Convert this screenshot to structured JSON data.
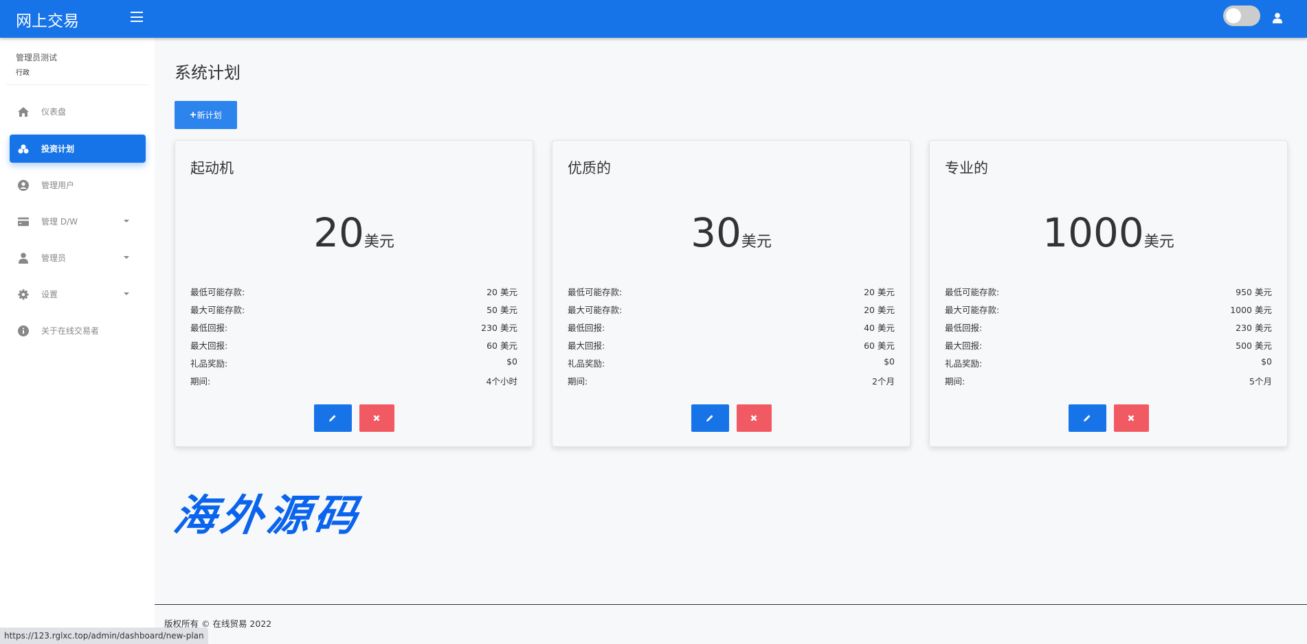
{
  "header": {
    "brand": "网上交易",
    "theme_toggle_on": false
  },
  "sidebar": {
    "user_name": "管理员测试",
    "user_role": "行政",
    "items": [
      {
        "label": "仪表盘",
        "icon": "home-icon"
      },
      {
        "label": "投资计划",
        "icon": "cubes-icon",
        "active": true
      },
      {
        "label": "管理用户",
        "icon": "user-circle-icon"
      },
      {
        "label": "管理 D/W",
        "icon": "credit-card-icon",
        "has_submenu": true
      },
      {
        "label": "管理员",
        "icon": "user-icon",
        "has_submenu": true
      },
      {
        "label": "设置",
        "icon": "gear-icon",
        "has_submenu": true
      },
      {
        "label": "关于在线交易者",
        "icon": "info-icon"
      }
    ]
  },
  "main": {
    "title": "系统计划",
    "new_plan_label": "新计划",
    "plans": [
      {
        "name": "起动机",
        "price": "20",
        "currency": "美元",
        "rows": [
          {
            "label": "最低可能存款:",
            "value": "20 美元"
          },
          {
            "label": "最大可能存款:",
            "value": "50 美元"
          },
          {
            "label": "最低回报:",
            "value": "230 美元"
          },
          {
            "label": "最大回报:",
            "value": "60 美元"
          },
          {
            "label": "礼品奖励:",
            "value": "$0"
          },
          {
            "label": "期间:",
            "value": "4个小时"
          }
        ]
      },
      {
        "name": "优质的",
        "price": "30",
        "currency": "美元",
        "rows": [
          {
            "label": "最低可能存款:",
            "value": "20 美元"
          },
          {
            "label": "最大可能存款:",
            "value": "20 美元"
          },
          {
            "label": "最低回报:",
            "value": "40 美元"
          },
          {
            "label": "最大回报:",
            "value": "60 美元"
          },
          {
            "label": "礼品奖励:",
            "value": "$0"
          },
          {
            "label": "期间:",
            "value": "2个月"
          }
        ]
      },
      {
        "name": "专业的",
        "price": "1000",
        "currency": "美元",
        "rows": [
          {
            "label": "最低可能存款:",
            "value": "950 美元"
          },
          {
            "label": "最大可能存款:",
            "value": "1000 美元"
          },
          {
            "label": "最低回报:",
            "value": "230 美元"
          },
          {
            "label": "最大回报:",
            "value": "500 美元"
          },
          {
            "label": "礼品奖励:",
            "value": "$0"
          },
          {
            "label": "期间:",
            "value": "5个月"
          }
        ]
      }
    ]
  },
  "watermark": "海外源码",
  "footer": {
    "copyright": "版权所有 © 在线贸易 2022"
  },
  "status_bar": {
    "url": "https://123.rglxc.top/admin/dashboard/new-plan"
  },
  "colors": {
    "primary": "#1773e8",
    "danger": "#f25a63"
  }
}
